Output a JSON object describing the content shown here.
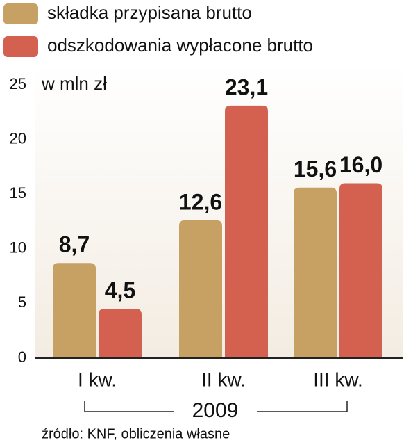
{
  "chart_data": {
    "type": "bar",
    "unit_label": "w mln zł",
    "categories": [
      "I kw.",
      "II kw.",
      "III kw."
    ],
    "period_label": "2009",
    "source": "źródło: KNF, obliczenia własne",
    "series": [
      {
        "name": "składka przypisana brutto",
        "color": "#c7a064",
        "values": [
          8.7,
          12.6,
          15.6
        ],
        "value_labels": [
          "8,7",
          "12,6",
          "15,6"
        ]
      },
      {
        "name": "odszkodowania wypłacone brutto",
        "color": "#d4614f",
        "values": [
          4.5,
          23.1,
          16.0
        ],
        "value_labels": [
          "4,5",
          "23,1",
          "16,0"
        ]
      }
    ],
    "ylim": [
      0,
      25
    ],
    "yticks": [
      0,
      5,
      10,
      15,
      20,
      25
    ],
    "grid": false,
    "legend": "top-left"
  }
}
